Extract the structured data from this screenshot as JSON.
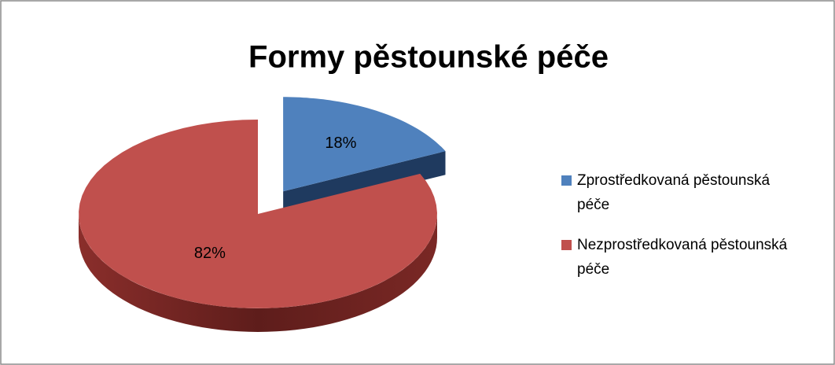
{
  "chart_data": {
    "type": "pie",
    "title": "Formy pěstounské péče",
    "categories": [
      "Zprostředkovaná pěstounská péče",
      "Nezprostředkovaná pěstounská péče"
    ],
    "values": [
      18,
      82
    ],
    "value_labels": [
      "18%",
      "82%"
    ],
    "colors": [
      "#4f81bd",
      "#c0504d"
    ],
    "legend": "right"
  }
}
